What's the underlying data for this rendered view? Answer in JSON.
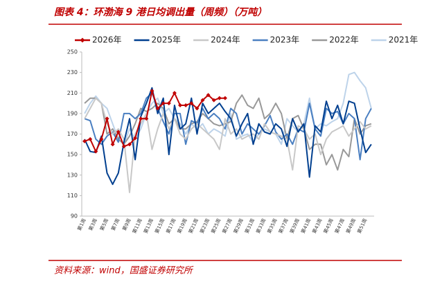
{
  "chart_data": {
    "type": "line",
    "title": "图表 4：环渤海 9 港日均调出量（周频）（万吨）",
    "source": "资料来源：wind，国盛证券研究所",
    "categories": [
      "第1周",
      null,
      "第3周",
      null,
      "第5周",
      null,
      "第7周",
      null,
      "第9周",
      null,
      "第11周",
      null,
      "第13周",
      null,
      "第15周",
      null,
      "第17周",
      null,
      "第19周",
      null,
      "第21周",
      null,
      "第23周",
      null,
      "第25周",
      null,
      "第27周",
      null,
      "第29周",
      null,
      "第31周",
      null,
      "第33周",
      null,
      "第35周",
      null,
      "第37周",
      null,
      "第39周",
      null,
      "第41周",
      null,
      "第43周",
      null,
      "第45周",
      null,
      "第47周",
      null,
      "第49周",
      null,
      "第51周",
      null
    ],
    "ylim": [
      90,
      250
    ],
    "yticks": [
      90,
      110,
      130,
      150,
      170,
      190,
      210,
      230,
      250
    ],
    "legend": "top",
    "series": [
      {
        "name": "2026年",
        "color": "#c00000",
        "marker": "diamond",
        "values": [
          163,
          165,
          153,
          165,
          185,
          160,
          172,
          158,
          160,
          166,
          185,
          185,
          212,
          195,
          200,
          200,
          210,
          198,
          198,
          200,
          195,
          203,
          208,
          203,
          205,
          205,
          null,
          null,
          null,
          null,
          null,
          null,
          null,
          null,
          null,
          null,
          null,
          null,
          null,
          null,
          null,
          null,
          null,
          null,
          null,
          null,
          null,
          null,
          null,
          null,
          null,
          null
        ]
      },
      {
        "name": "2025年",
        "color": "#003f8f",
        "values": [
          165,
          153,
          152,
          168,
          132,
          121,
          132,
          162,
          185,
          145,
          187,
          200,
          215,
          190,
          205,
          150,
          198,
          175,
          180,
          205,
          170,
          200,
          190,
          195,
          200,
          192,
          185,
          168,
          180,
          190,
          160,
          180,
          172,
          170,
          180,
          175,
          158,
          185,
          172,
          180,
          128,
          178,
          172,
          202,
          185,
          198,
          180,
          202,
          200,
          175,
          152,
          160
        ]
      },
      {
        "name": "2024年",
        "color": "#c8c8c8",
        "values": [
          185,
          195,
          205,
          200,
          180,
          170,
          175,
          165,
          113,
          170,
          180,
          190,
          155,
          175,
          190,
          175,
          185,
          170,
          165,
          175,
          180,
          175,
          170,
          165,
          155,
          185,
          170,
          175,
          165,
          168,
          170,
          165,
          180,
          172,
          170,
          168,
          165,
          135,
          178,
          175,
          165,
          170,
          150,
          165,
          172,
          175,
          178,
          168,
          175,
          182,
          175,
          178
        ]
      },
      {
        "name": "2023年",
        "color": "#4a7fc1",
        "values": [
          185,
          183,
          165,
          160,
          168,
          172,
          162,
          190,
          190,
          185,
          190,
          205,
          210,
          195,
          182,
          170,
          190,
          190,
          160,
          183,
          180,
          195,
          185,
          190,
          185,
          175,
          195,
          190,
          170,
          180,
          175,
          170,
          178,
          188,
          172,
          165,
          170,
          160,
          175,
          172,
          200,
          175,
          168,
          195,
          190,
          192,
          180,
          190,
          185,
          145,
          185,
          195
        ]
      },
      {
        "name": "2022年",
        "color": "#999999",
        "values": [
          200,
          205,
          205,
          200,
          170,
          175,
          165,
          160,
          168,
          180,
          195,
          192,
          195,
          200,
          195,
          180,
          185,
          175,
          175,
          180,
          182,
          190,
          185,
          180,
          178,
          180,
          182,
          200,
          208,
          198,
          195,
          205,
          185,
          190,
          200,
          190,
          165,
          185,
          188,
          175,
          155,
          160,
          160,
          140,
          150,
          135,
          155,
          148,
          185,
          170,
          178,
          180
        ]
      },
      {
        "name": "2021年",
        "color": "#bdd3ea",
        "values": [
          190,
          200,
          207,
          200,
          195,
          180,
          165,
          160,
          175,
          165,
          175,
          190,
          200,
          205,
          190,
          195,
          185,
          180,
          170,
          180,
          175,
          180,
          170,
          175,
          172,
          168,
          190,
          165,
          168,
          170,
          162,
          170,
          175,
          172,
          170,
          160,
          185,
          178,
          172,
          180,
          205,
          175,
          180,
          178,
          182,
          185,
          200,
          228,
          230,
          222,
          215,
          195
        ]
      }
    ]
  }
}
